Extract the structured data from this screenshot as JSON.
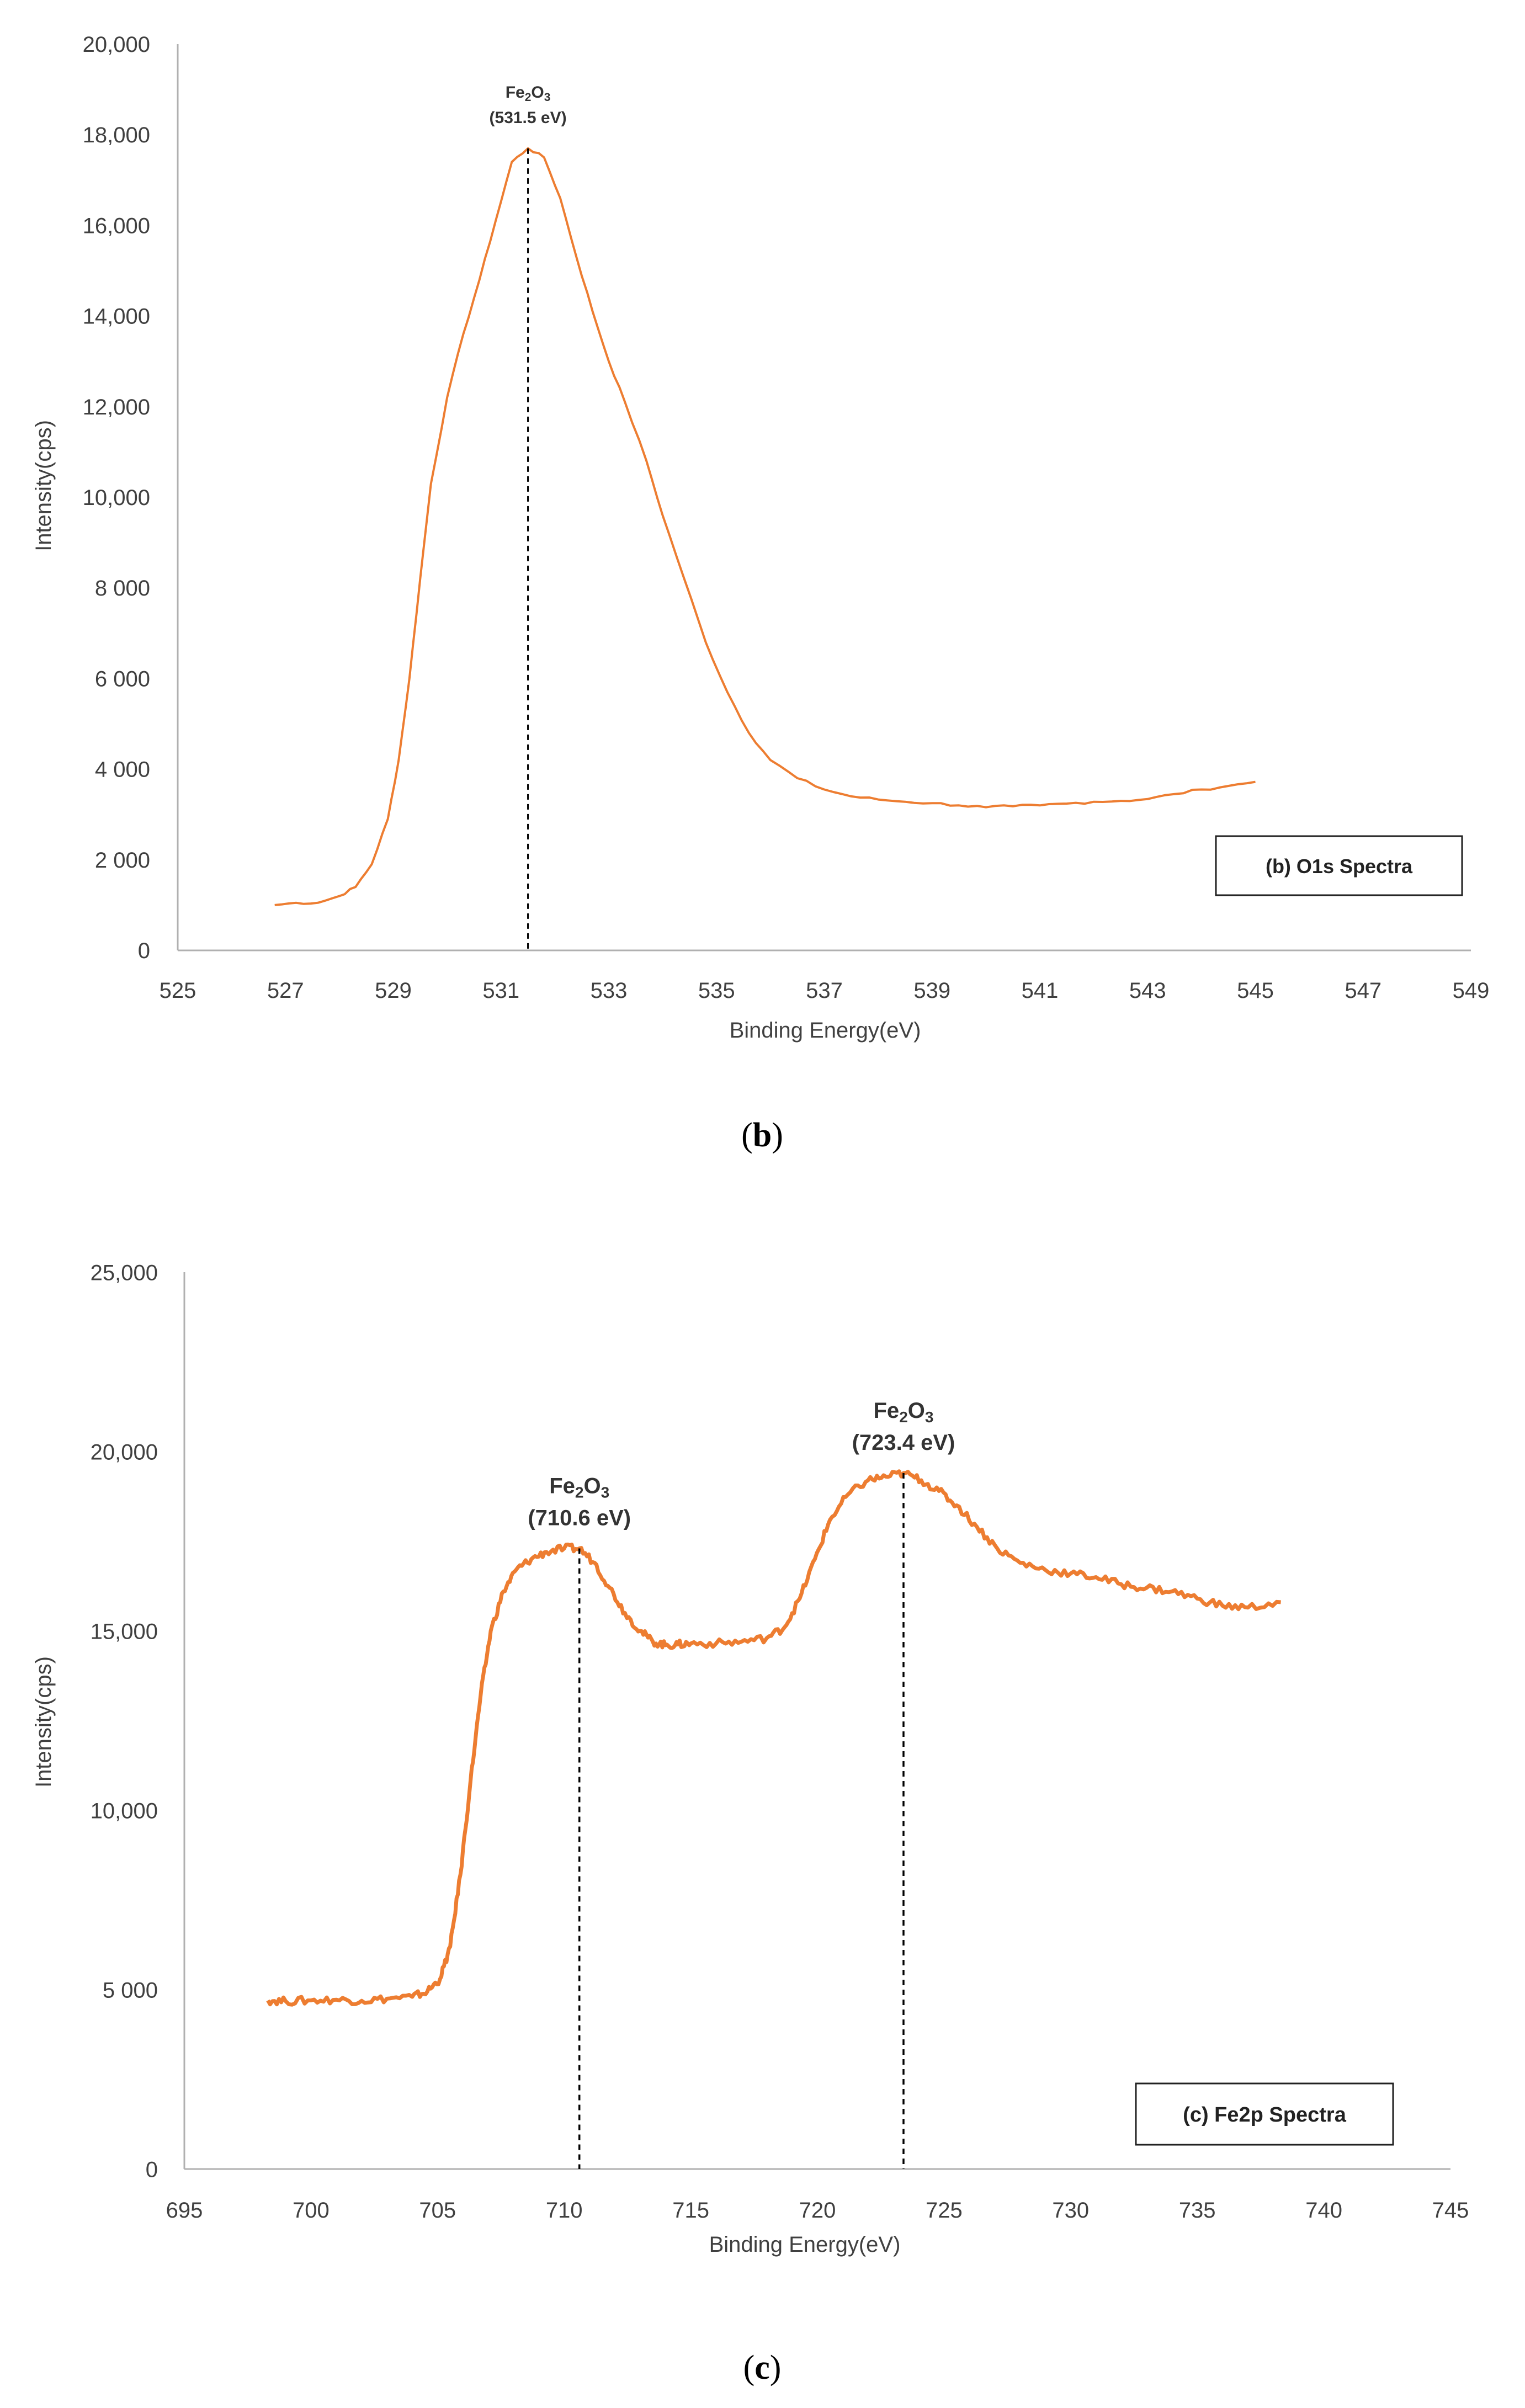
{
  "figure": {
    "panels": [
      {
        "caption": "(b)",
        "caption_letter": "b",
        "legend_label": "(b) O1s  Spectra",
        "annotations": [
          {
            "formula": "Fe2O3",
            "value_label": "(531.5 eV)",
            "x": 531.5
          }
        ]
      },
      {
        "caption": "(c)",
        "caption_letter": "c",
        "legend_label": "(c) Fe2p  Spectra",
        "annotations": [
          {
            "formula": "Fe2O3",
            "value_label": "(710.6 eV)",
            "x": 710.6
          },
          {
            "formula": "Fe2O3",
            "value_label": "(723.4 eV)",
            "x": 723.4
          }
        ]
      }
    ]
  },
  "chart_data": [
    {
      "type": "line",
      "title": "(b) O1s  Spectra",
      "xlabel": "Binding Energy(eV)",
      "ylabel": "Intensity(cps)",
      "xlim": [
        525,
        549
      ],
      "ylim": [
        0,
        20000
      ],
      "x_ticks": [
        525,
        527,
        529,
        531,
        533,
        535,
        537,
        539,
        541,
        543,
        545,
        547,
        549
      ],
      "y_ticks": [
        0,
        2000,
        4000,
        6000,
        8000,
        10000,
        12000,
        14000,
        16000,
        18000,
        20000
      ],
      "y_tick_labels": [
        "0",
        "2 000",
        "4 000",
        "6 000",
        "8 000",
        "10,000",
        "12,000",
        "14,000",
        "16,000",
        "18,000",
        "20,000"
      ],
      "line_color": "#ED7D31",
      "series": [
        {
          "name": "O1s",
          "x": [
            526.8,
            527.2,
            527.6,
            528.0,
            528.3,
            528.6,
            528.9,
            529.1,
            529.3,
            529.5,
            529.7,
            530.0,
            530.3,
            530.6,
            530.9,
            531.2,
            531.5,
            531.8,
            532.1,
            532.4,
            532.7,
            533.0,
            533.3,
            533.7,
            534.0,
            534.4,
            534.8,
            535.2,
            535.6,
            536.0,
            536.5,
            537.0,
            537.5,
            538.0,
            538.5,
            539.0,
            539.5,
            540.0,
            540.5,
            541.0,
            541.5,
            542.0,
            542.5,
            543.0,
            543.5,
            544.0,
            544.5,
            545.0
          ],
          "y": [
            1000,
            1050,
            1050,
            1200,
            1400,
            1900,
            2900,
            4200,
            6000,
            8200,
            10300,
            12200,
            13600,
            14800,
            16100,
            17400,
            17700,
            17500,
            16600,
            15300,
            14100,
            13000,
            12100,
            10800,
            9600,
            8200,
            6800,
            5700,
            4800,
            4200,
            3800,
            3550,
            3400,
            3330,
            3280,
            3250,
            3200,
            3160,
            3180,
            3200,
            3240,
            3280,
            3300,
            3340,
            3450,
            3550,
            3630,
            3720
          ]
        }
      ]
    },
    {
      "type": "line",
      "title": "(c) Fe2p  Spectra",
      "xlabel": "Binding Energy(eV)",
      "ylabel": "Intensity(cps)",
      "xlim": [
        695,
        745
      ],
      "ylim": [
        0,
        25000
      ],
      "x_ticks": [
        695,
        700,
        705,
        710,
        715,
        720,
        725,
        730,
        735,
        740,
        745
      ],
      "y_ticks": [
        0,
        5000,
        10000,
        15000,
        20000,
        25000
      ],
      "y_tick_labels": [
        "0",
        "5 000",
        "10,000",
        "15,000",
        "20,000",
        "25,000"
      ],
      "line_color": "#ED7D31",
      "series": [
        {
          "name": "Fe2p",
          "x": [
            698.3,
            699,
            700,
            701,
            702,
            703,
            704,
            704.6,
            705.1,
            705.5,
            705.9,
            706.3,
            706.7,
            707.1,
            707.6,
            708.1,
            708.7,
            709.3,
            710.0,
            710.6,
            711.2,
            711.8,
            712.4,
            713.0,
            713.5,
            714.0,
            714.5,
            715.0,
            716.0,
            717.0,
            718.0,
            718.7,
            719.3,
            719.9,
            720.5,
            721.2,
            722.0,
            722.7,
            723.4,
            724.1,
            724.8,
            725.5,
            726.3,
            727.1,
            728.0,
            729.0,
            730.0,
            731.0,
            732.0,
            733.0,
            734.0,
            735.0,
            736.0,
            737.0,
            738.3
          ],
          "y": [
            4700,
            4680,
            4700,
            4720,
            4690,
            4750,
            4800,
            4950,
            5300,
            6200,
            8200,
            10800,
            13200,
            15000,
            16100,
            16700,
            17000,
            17200,
            17300,
            17300,
            16900,
            16200,
            15500,
            15000,
            14700,
            14600,
            14620,
            14650,
            14650,
            14700,
            14800,
            15100,
            15900,
            17000,
            18100,
            18800,
            19200,
            19300,
            19400,
            19200,
            18900,
            18500,
            17900,
            17300,
            16900,
            16700,
            16600,
            16500,
            16300,
            16200,
            16100,
            15900,
            15700,
            15650,
            15800
          ]
        }
      ]
    }
  ]
}
